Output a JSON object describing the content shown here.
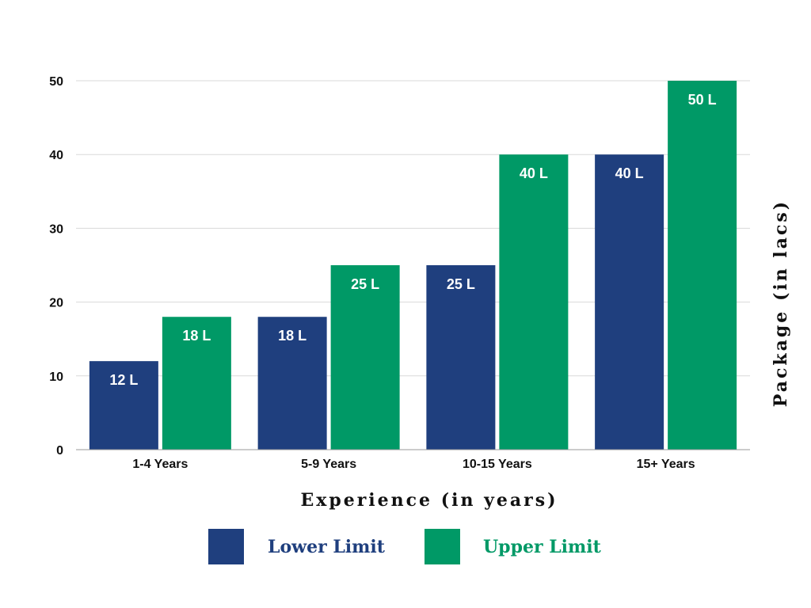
{
  "chart_data": {
    "type": "bar",
    "categories": [
      "1-4 Years",
      "5-9 Years",
      "10-15 Years",
      "15+ Years"
    ],
    "series": [
      {
        "name": "Lower Limit",
        "values": [
          12,
          18,
          25,
          40
        ],
        "labels": [
          "12 L",
          "18 L",
          "25 L",
          "40 L"
        ],
        "color": "#1f3f7e"
      },
      {
        "name": "Upper Limit",
        "values": [
          18,
          25,
          40,
          50
        ],
        "labels": [
          "18 L",
          "25 L",
          "40 L",
          "50 L"
        ],
        "color": "#009966"
      }
    ],
    "xlabel": "Experience (in years)",
    "ylabel": "Package (in lacs)",
    "ylim": [
      0,
      50
    ],
    "yticks": [
      0,
      10,
      20,
      30,
      40,
      50
    ],
    "grid": true,
    "legend": "bottom",
    "colors": {
      "grid": "#d9d9d9",
      "axis": "#999999",
      "text": "#111111",
      "lower": "#1f3f7e",
      "upper": "#009966"
    }
  }
}
